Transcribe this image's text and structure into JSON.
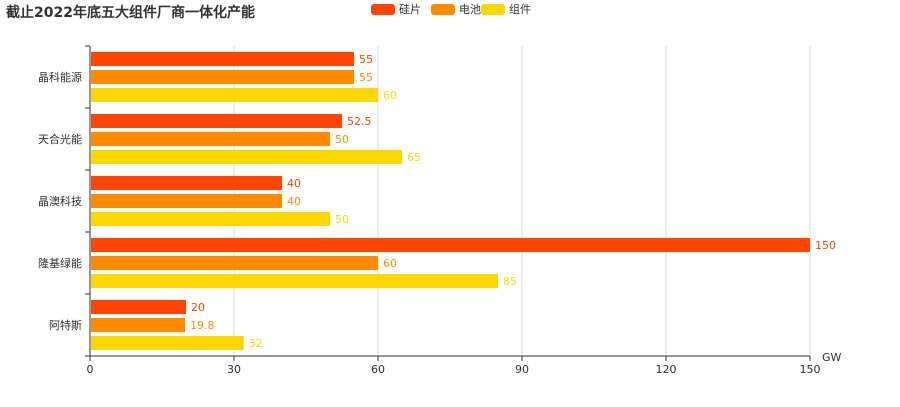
{
  "chart_data": {
    "type": "bar",
    "orientation": "horizontal",
    "title": "截止2022年底五大组件厂商一体化产能",
    "xlabel": "GW",
    "ylabel": "",
    "xlim": [
      0,
      150
    ],
    "xticks": [
      0,
      30,
      60,
      90,
      120,
      150
    ],
    "grid": true,
    "legend_position": "top-center",
    "categories": [
      "晶科能源",
      "天合光能",
      "晶澳科技",
      "隆基绿能",
      "阿特斯"
    ],
    "series": [
      {
        "name": "硅片",
        "color": "#ff4500",
        "values": [
          55,
          52.5,
          40,
          150,
          20
        ],
        "labels": [
          "55",
          "52.5",
          "40",
          "150",
          "20"
        ]
      },
      {
        "name": "电池",
        "color": "#ff8c00",
        "values": [
          55,
          50,
          40,
          60,
          19.8
        ],
        "labels": [
          "55",
          "50",
          "40",
          "60",
          "19.8"
        ]
      },
      {
        "name": "组件",
        "color": "#ffd700",
        "values": [
          60,
          65,
          50,
          85,
          32
        ],
        "labels": [
          "60",
          "65",
          "50",
          "85",
          "32"
        ]
      }
    ]
  }
}
